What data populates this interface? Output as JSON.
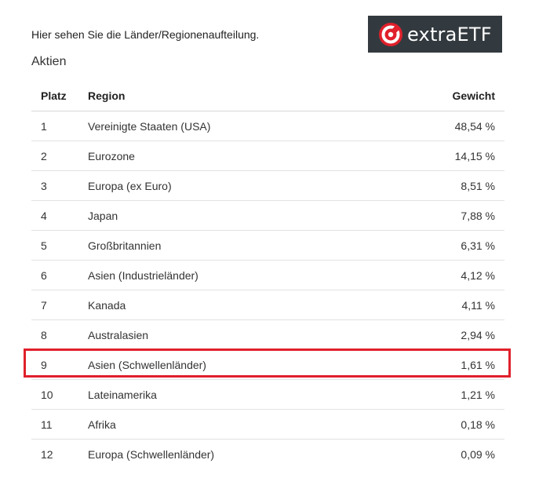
{
  "intro_text": "Hier sehen Sie die Länder/Regionenaufteilung.",
  "logo": {
    "text": "extraETF",
    "icon": "extraetf-logo-icon",
    "accent": "#e0202b",
    "background": "#333a3f"
  },
  "section_title": "Aktien",
  "table": {
    "headers": {
      "rank": "Platz",
      "region": "Region",
      "weight": "Gewicht"
    },
    "rows": [
      {
        "rank": "1",
        "region": "Vereinigte Staaten (USA)",
        "weight": "48,54 %"
      },
      {
        "rank": "2",
        "region": "Eurozone",
        "weight": "14,15 %"
      },
      {
        "rank": "3",
        "region": "Europa (ex Euro)",
        "weight": "8,51 %"
      },
      {
        "rank": "4",
        "region": "Japan",
        "weight": "7,88 %"
      },
      {
        "rank": "5",
        "region": "Großbritannien",
        "weight": "6,31 %"
      },
      {
        "rank": "6",
        "region": "Asien (Industrieländer)",
        "weight": "4,12 %"
      },
      {
        "rank": "7",
        "region": "Kanada",
        "weight": "4,11 %"
      },
      {
        "rank": "8",
        "region": "Australasien",
        "weight": "2,94 %"
      },
      {
        "rank": "9",
        "region": "Asien (Schwellenländer)",
        "weight": "1,61 %"
      },
      {
        "rank": "10",
        "region": "Lateinamerika",
        "weight": "1,21 %"
      },
      {
        "rank": "11",
        "region": "Afrika",
        "weight": "0,18 %"
      },
      {
        "rank": "12",
        "region": "Europa (Schwellenländer)",
        "weight": "0,09 %"
      }
    ]
  },
  "highlight": {
    "row_rank": "9",
    "color": "#e0202b"
  }
}
